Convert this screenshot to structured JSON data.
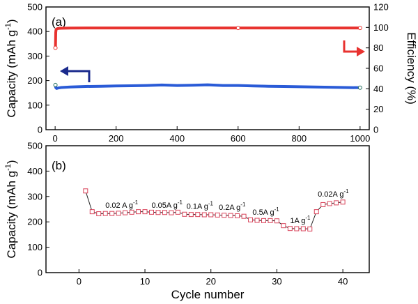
{
  "chart_data": [
    {
      "type": "line",
      "panel_label": "(a)",
      "xlabel": "",
      "ylabel": "Capacity (mAh g",
      "ylabel_sup": "-1",
      "ylabel_end": ")",
      "y2label": "Efficiency (%)",
      "xlim": [
        -30,
        1030
      ],
      "ylim": [
        0,
        500
      ],
      "y2lim": [
        0,
        120
      ],
      "x_ticks": [
        0,
        200,
        400,
        600,
        800,
        1000
      ],
      "y_ticks": [
        0,
        100,
        200,
        300,
        400,
        500
      ],
      "y2_ticks": [
        0,
        20,
        40,
        60,
        80,
        100,
        120
      ],
      "grid": false,
      "series": [
        {
          "role": "capacity",
          "axis": "left",
          "color": "#2a5bd7",
          "x": [
            1,
            2,
            5,
            10,
            20,
            50,
            100,
            150,
            200,
            250,
            300,
            350,
            400,
            450,
            500,
            550,
            600,
            650,
            700,
            750,
            800,
            850,
            900,
            950,
            1000
          ],
          "y": [
            182,
            172,
            168,
            170,
            172,
            174,
            176,
            177,
            178,
            179,
            180,
            182,
            180,
            181,
            183,
            180,
            180,
            178,
            177,
            176,
            175,
            174,
            173,
            172,
            171
          ]
        },
        {
          "role": "efficiency",
          "axis": "right",
          "color": "#e8322f",
          "x": [
            1,
            2,
            3,
            5,
            10,
            20,
            50,
            100,
            200,
            300,
            400,
            500,
            600,
            700,
            800,
            900,
            1000
          ],
          "y": [
            80,
            95,
            97.5,
            98.5,
            99,
            99.2,
            99.4,
            99.5,
            99.5,
            99.5,
            99.5,
            99.5,
            99.5,
            99.5,
            99.5,
            99.5,
            99.5
          ]
        }
      ],
      "arrows": [
        {
          "direction": "left",
          "color": "#1a2a8c"
        },
        {
          "direction": "right",
          "color": "#e8322f"
        }
      ]
    },
    {
      "type": "line",
      "panel_label": "(b)",
      "xlabel": "Cycle number",
      "ylabel": "Capacity (mAh g",
      "ylabel_sup": "-1",
      "ylabel_end": ")",
      "xlim": [
        -5,
        44
      ],
      "ylim": [
        0,
        500
      ],
      "x_ticks": [
        0,
        10,
        20,
        30,
        40
      ],
      "y_ticks": [
        0,
        100,
        200,
        300,
        400,
        500
      ],
      "grid": false,
      "series": [
        {
          "color": "#d9435a",
          "marker": "square",
          "x": [
            1,
            2,
            3,
            4,
            5,
            6,
            7,
            8,
            9,
            10,
            11,
            12,
            13,
            14,
            15,
            16,
            17,
            18,
            19,
            20,
            21,
            22,
            23,
            24,
            25,
            26,
            27,
            28,
            29,
            30,
            31,
            32,
            33,
            34,
            35,
            36,
            37,
            38,
            39,
            40
          ],
          "y": [
            322,
            240,
            232,
            233,
            233,
            234,
            236,
            238,
            240,
            240,
            238,
            237,
            237,
            236,
            238,
            230,
            229,
            229,
            228,
            228,
            227,
            226,
            225,
            224,
            222,
            208,
            206,
            205,
            205,
            204,
            185,
            174,
            173,
            173,
            172,
            240,
            268,
            272,
            275,
            278
          ]
        }
      ],
      "annotations": [
        {
          "text": "0.02 A g",
          "sup": "-1",
          "x": 4,
          "y": 255
        },
        {
          "text": "0.05A g",
          "sup": "-1",
          "x": 11,
          "y": 255
        },
        {
          "text": "0.1A g",
          "sup": "-1",
          "x": 16.3,
          "y": 252
        },
        {
          "text": "0.2A g",
          "sup": "-1",
          "x": 21.2,
          "y": 247
        },
        {
          "text": "0.5A g",
          "sup": "-1",
          "x": 26.3,
          "y": 228
        },
        {
          "text": "1A g",
          "sup": "-1",
          "x": 32,
          "y": 195
        },
        {
          "text": "0.02A g",
          "sup": "-1",
          "x": 36.2,
          "y": 300
        }
      ]
    }
  ]
}
